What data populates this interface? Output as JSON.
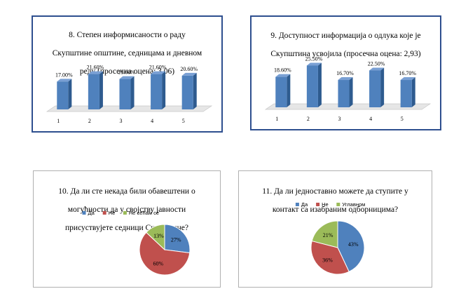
{
  "chart_data": [
    {
      "type": "bar",
      "title": "8. Степен информисаности о раду Скупштине општине, седницама и дневном реду (просечна оцена: 3,06)",
      "title_lines": [
        "8. Степен информисаности о раду",
        "Скупштине општине, седницама и дневном",
        "реду (просечна оцена: 3,06)"
      ],
      "categories": [
        "1",
        "2",
        "3",
        "4",
        "5"
      ],
      "values": [
        17.0,
        21.6,
        18.6,
        21.6,
        20.6
      ],
      "data_labels": [
        "17.00%",
        "21.60%",
        "18.60%",
        "21.60%",
        "20.60%"
      ],
      "ylim": [
        0,
        30
      ],
      "grid": false,
      "colors": {
        "bar": "#4f81bd",
        "bar_side": "#2e5b8f",
        "bar_top": "#7aa0d4",
        "floor": "#e6e6e6"
      }
    },
    {
      "type": "bar",
      "title": "9. Доступност информација о одлука које је Скупштина усвојила (просечна оцена: 2,93)",
      "title_lines": [
        "9. Доступност информација о одлука које је",
        "Скупштина усвојила (просечна оцена: 2,93)"
      ],
      "categories": [
        "1",
        "2",
        "3",
        "4",
        "5"
      ],
      "values": [
        18.6,
        25.5,
        16.7,
        22.5,
        16.7
      ],
      "data_labels": [
        "18.60%",
        "25.50%",
        "16.70%",
        "22.50%",
        "16.70%"
      ],
      "ylim": [
        0,
        30
      ],
      "grid": false,
      "colors": {
        "bar": "#4f81bd",
        "bar_side": "#2e5b8f",
        "bar_top": "#7aa0d4",
        "floor": "#e6e6e6"
      }
    },
    {
      "type": "pie",
      "title": "10. Да ли сте некада били обавештени о могућности да у својству јавности присуствујете седници Скупштине?",
      "title_lines": [
        "10. Да ли сте некада били обавештени о",
        "могућности да у својству јавности",
        "присуствујете седници Скупштине?"
      ],
      "categories": [
        "Да",
        "Не",
        "Не сећам се"
      ],
      "values": [
        27,
        60,
        13
      ],
      "data_labels": [
        "27%",
        "60%",
        "13%"
      ],
      "legend": "top",
      "colors": [
        "#4f81bd",
        "#c0504d",
        "#9bbb59"
      ]
    },
    {
      "type": "pie",
      "title": "11. Да ли једноставно можете да ступите у контакт са изабраним одборницима?",
      "title_lines": [
        "11. Да ли једноставно можете да ступите у",
        "контакт са изабраним одборницима?"
      ],
      "categories": [
        "Да",
        "Не",
        "Углавном"
      ],
      "values": [
        43,
        36,
        21
      ],
      "data_labels": [
        "43%",
        "36%",
        "21%"
      ],
      "legend": "top",
      "colors": [
        "#4f81bd",
        "#c0504d",
        "#9bbb59"
      ]
    }
  ]
}
